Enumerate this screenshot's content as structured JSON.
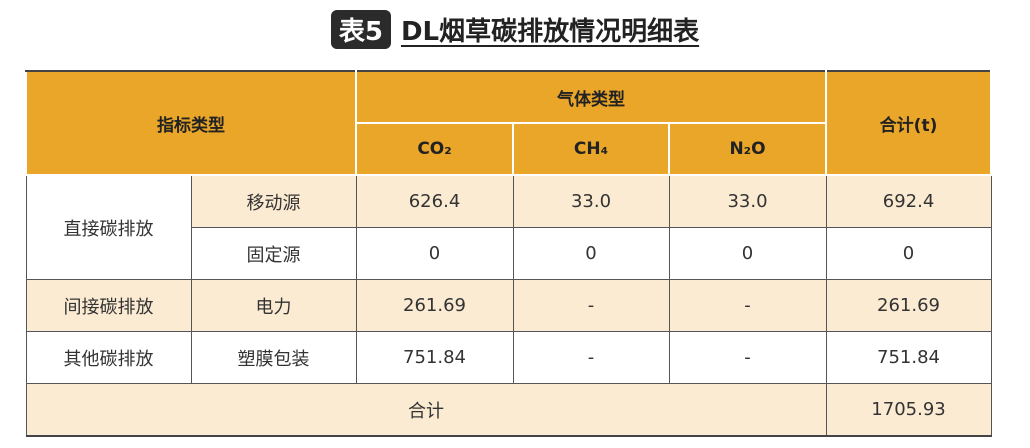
{
  "header": {
    "badge": "表5",
    "title": "DL烟草碳排放情况明细表"
  },
  "table": {
    "columns": {
      "indicator": "指标类型",
      "gas_group": "气体类型",
      "gases": [
        "CO₂",
        "CH₄",
        "N₂O"
      ],
      "total": "合计(t)"
    },
    "groups": [
      {
        "label": "直接碳排放",
        "rows": [
          {
            "item": "移动源",
            "values": [
              "626.4",
              "33.0",
              "33.0"
            ],
            "total": "692.4"
          },
          {
            "item": "固定源",
            "values": [
              "0",
              "0",
              "0"
            ],
            "total": "0"
          }
        ]
      },
      {
        "label": "间接碳排放",
        "rows": [
          {
            "item": "电力",
            "values": [
              "261.69",
              "-",
              "-"
            ],
            "total": "261.69"
          }
        ]
      },
      {
        "label": "其他碳排放",
        "rows": [
          {
            "item": "塑膜包装",
            "values": [
              "751.84",
              "-",
              "-"
            ],
            "total": "751.84"
          }
        ]
      }
    ],
    "footer": {
      "label": "合计",
      "total": "1705.93"
    }
  }
}
